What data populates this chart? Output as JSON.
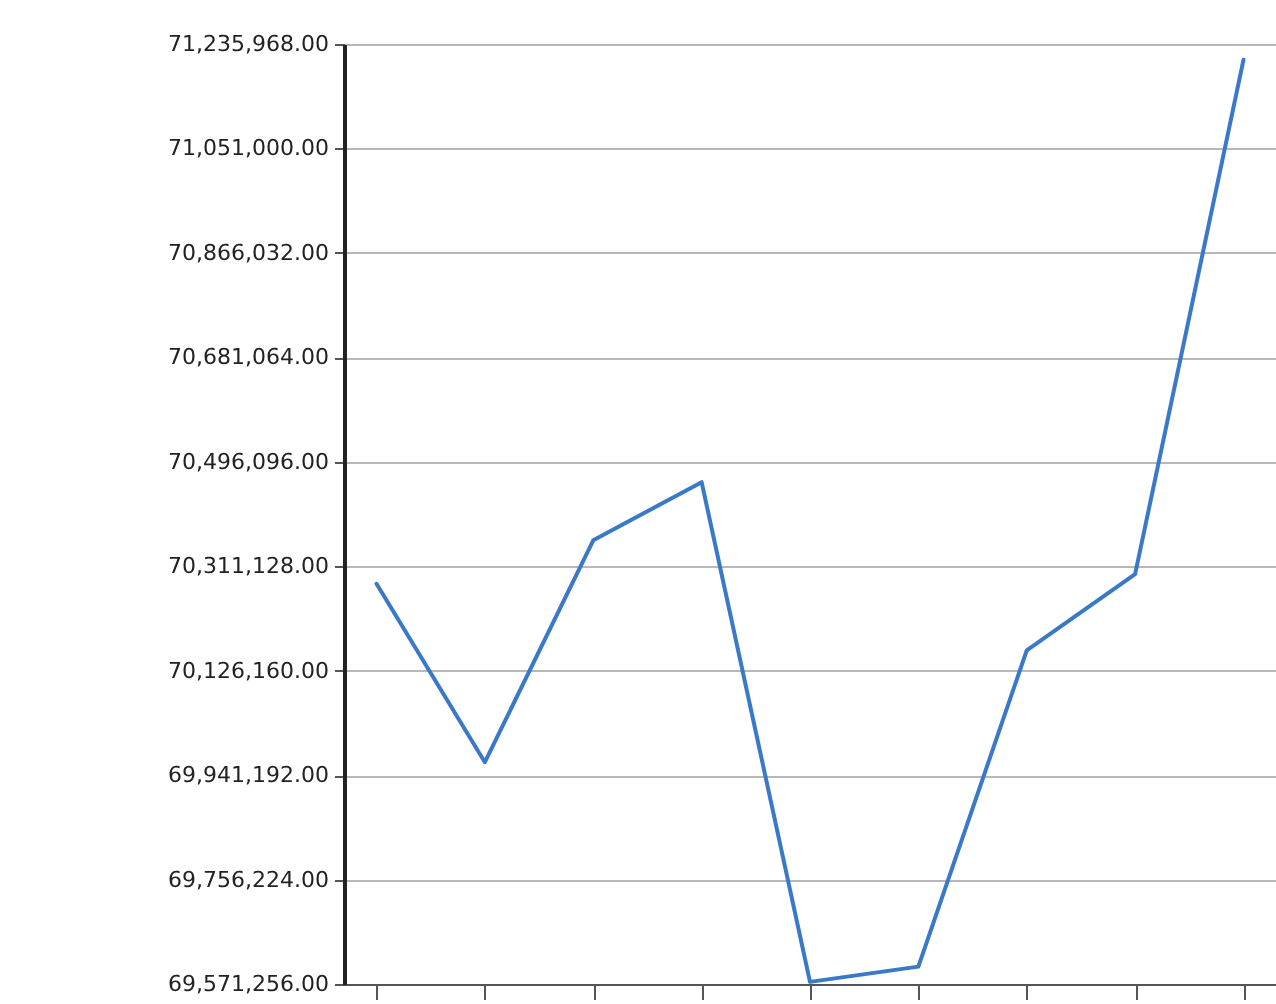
{
  "chart_data": {
    "type": "line",
    "categories": [
      null,
      null,
      null,
      null,
      null,
      null,
      null,
      null,
      null
    ],
    "series": [
      {
        "color": "#3a78c8",
        "values": [
          70280000,
          69964000,
          70357000,
          70460000,
          69575000,
          69602000,
          70162000,
          70297000,
          71208000
        ]
      }
    ],
    "ylim": [
      69571256,
      71235968
    ],
    "yticks": [
      {
        "value": 69571256,
        "label": "69,571,256.00"
      },
      {
        "value": 69756224,
        "label": "69,756,224.00"
      },
      {
        "value": 69941192,
        "label": "69,941,192.00"
      },
      {
        "value": 70126160,
        "label": "70,126,160.00"
      },
      {
        "value": 70311128,
        "label": "70,311,128.00"
      },
      {
        "value": 70496096,
        "label": "70,496,096.00"
      },
      {
        "value": 70681064,
        "label": "70,681,064.00"
      },
      {
        "value": 70866032,
        "label": "70,866,032.00"
      },
      {
        "value": 71051000,
        "label": "71,051,000.00"
      },
      {
        "value": 71235968,
        "label": "71,235,968.00"
      }
    ],
    "grid": "y",
    "marker": "none",
    "line_style": "solid"
  }
}
